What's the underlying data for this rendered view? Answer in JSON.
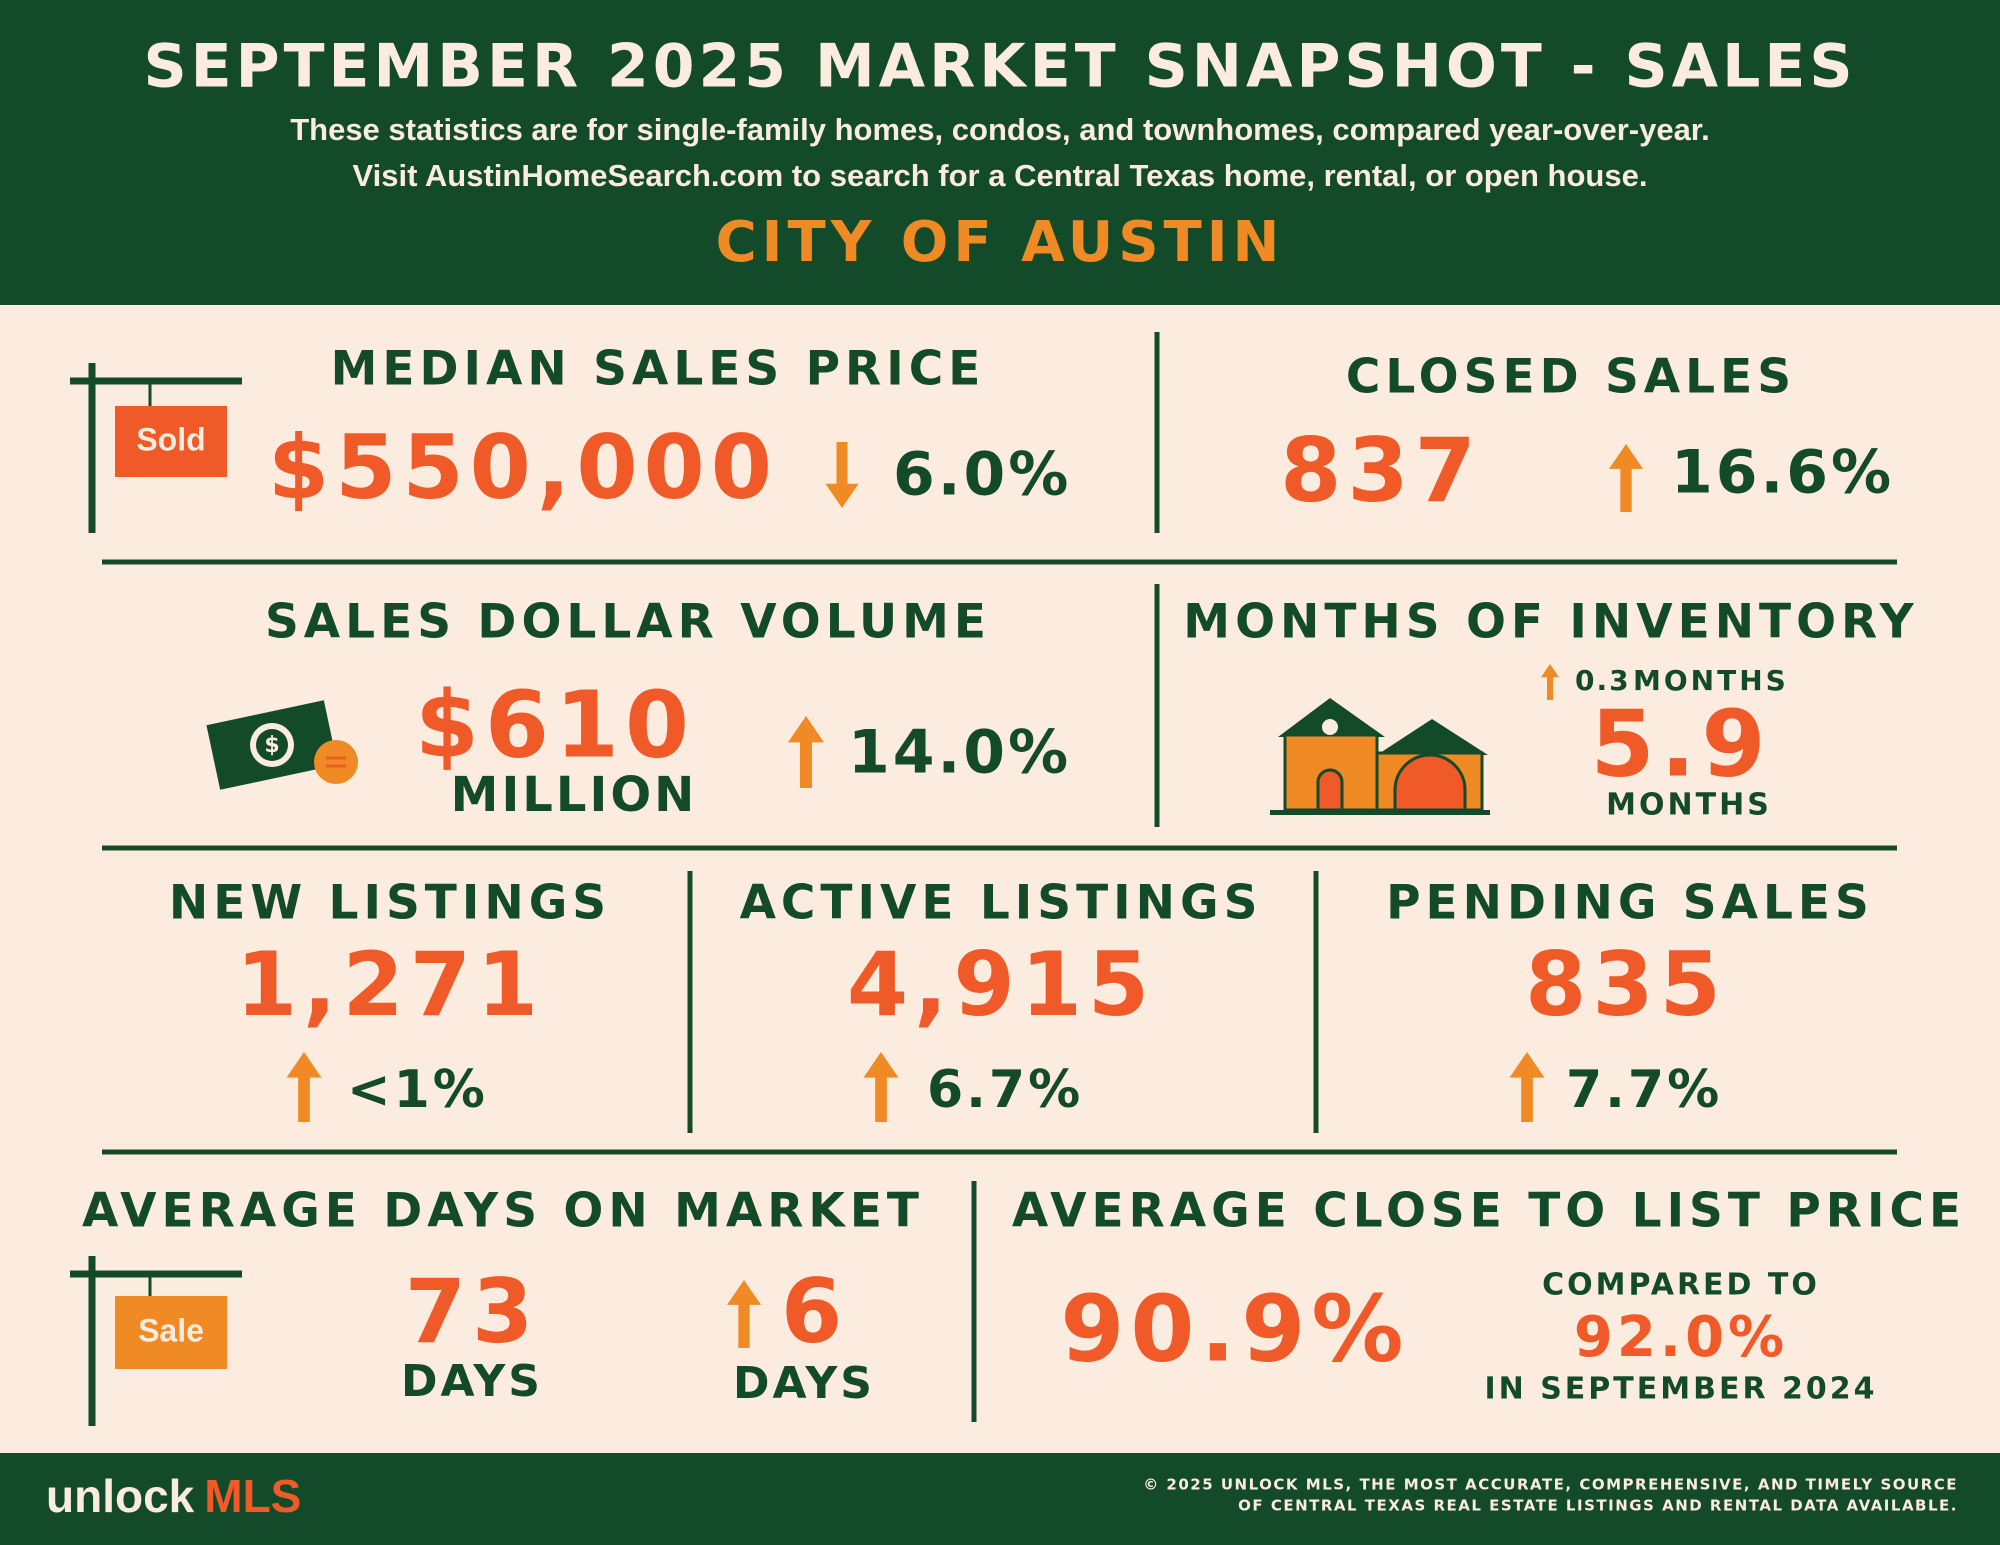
{
  "header": {
    "title": "SEPTEMBER 2025 MARKET SNAPSHOT - SALES",
    "subtitle": [
      "These statistics are for single-family homes, condos, and townhomes, compared year-over-year.",
      "Visit AustinHomeSearch.com to search for a Central Texas home, rental, or open house."
    ],
    "region": "CITY OF AUSTIN"
  },
  "stats": {
    "median_sales_price": {
      "label": "MEDIAN SALES PRICE",
      "sign": "Sold",
      "value": "$550,000",
      "change": "6.0%"
    },
    "closed_sales": {
      "label": "CLOSED SALES",
      "value": "837",
      "change": "16.6%"
    },
    "sales_dollar_volume": {
      "label": "SALES DOLLAR VOLUME",
      "value": "$610",
      "unit": "MILLION",
      "change": "14.0%"
    },
    "months_of_inventory": {
      "label": "MONTHS OF INVENTORY",
      "change": "0.3",
      "change_unit": "MONTHS",
      "value": "5.9",
      "unit": "MONTHS"
    },
    "new_listings": {
      "label": "NEW LISTINGS",
      "value": "1,271",
      "change": "<1%"
    },
    "active_listings": {
      "label": "ACTIVE LISTINGS",
      "value": "4,915",
      "change": "6.7%"
    },
    "pending_sales": {
      "label": "PENDING SALES",
      "value": "835",
      "change": "7.7%"
    },
    "average_days_on_market": {
      "label": "AVERAGE DAYS ON MARKET",
      "sign": "Sale",
      "value": "73",
      "unit": "DAYS",
      "change": "6",
      "change_unit": "DAYS"
    },
    "average_close_to_list_price": {
      "label": "AVERAGE CLOSE TO LIST PRICE",
      "value": "90.9%",
      "compare_intro": "COMPARED TO",
      "compare_value": "92.0%",
      "compare_period": "IN SEPTEMBER 2024"
    }
  },
  "footer": {
    "logo": [
      "unlock",
      "MLS"
    ],
    "notice": [
      "© 2025 UNLOCK MLS, THE MOST ACCURATE, COMPREHENSIVE, AND TIMELY SOURCE",
      "OF CENTRAL TEXAS REAL ESTATE LISTINGS AND RENTAL DATA AVAILABLE."
    ]
  }
}
